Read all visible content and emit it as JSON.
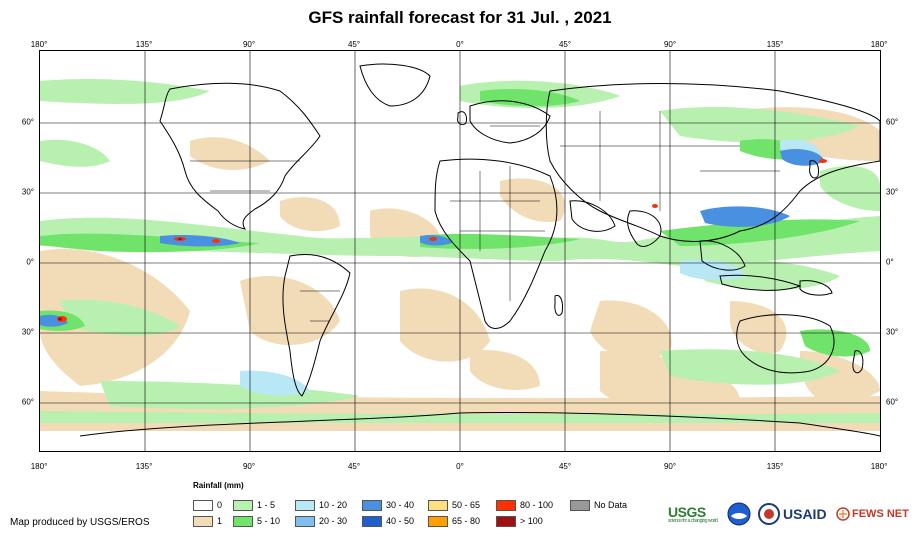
{
  "title": "GFS rainfall forecast for 31 Jul. , 2021",
  "axes": {
    "top_lon": [
      "180°",
      "135°",
      "90°",
      "45°",
      "0°",
      "45°",
      "90°",
      "135°",
      "180°"
    ],
    "bottom_lon": [
      "180°",
      "135°",
      "90°",
      "45°",
      "0°",
      "45°",
      "90°",
      "135°",
      "180°"
    ],
    "left_lat": [
      "60°",
      "30°",
      "0°",
      "30°",
      "60°"
    ],
    "right_lat": [
      "60°",
      "30°",
      "0°",
      "30°",
      "60°"
    ]
  },
  "legend": {
    "title": "Rainfall (mm)",
    "items": [
      {
        "label": "0",
        "color": "#ffffff"
      },
      {
        "label": "1",
        "color": "#f2dcb8"
      },
      {
        "label": "1 - 5",
        "color": "#b8f0b0"
      },
      {
        "label": "5 - 10",
        "color": "#6fe36a"
      },
      {
        "label": "10 - 20",
        "color": "#b8e8f5"
      },
      {
        "label": "20 - 30",
        "color": "#7fbfef"
      },
      {
        "label": "30 - 40",
        "color": "#4a90e0"
      },
      {
        "label": "40 - 50",
        "color": "#1f5fd0"
      },
      {
        "label": "50 - 65",
        "color": "#ffe080"
      },
      {
        "label": "65 - 80",
        "color": "#ffa000"
      },
      {
        "label": "80 - 100",
        "color": "#ff3000"
      },
      {
        "label": "> 100",
        "color": "#a01010"
      },
      {
        "label": "No Data",
        "color": "#999999"
      }
    ]
  },
  "credit": "Map produced by USGS/EROS",
  "logos": {
    "usgs": "USGS",
    "usgs_tagline": "science for a changing world",
    "noaa": "NOAA",
    "usaid": "USAID",
    "fews": "FEWS NET"
  }
}
